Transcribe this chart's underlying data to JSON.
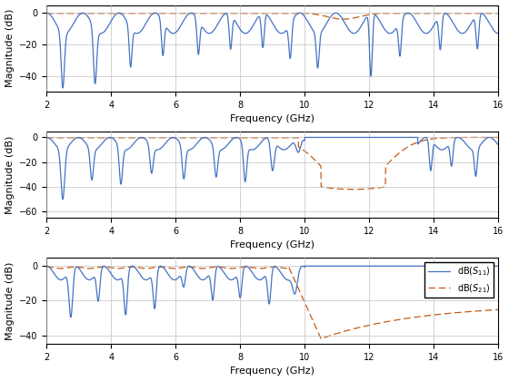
{
  "freq_range": [
    2,
    16
  ],
  "xlabel": "Frequency (GHz)",
  "ylabel": "Magnitude (dB)",
  "s11_color": "#4472C4",
  "s21_color": "#C55A11",
  "axes": [
    {
      "ylim": [
        -50,
        5
      ],
      "yticks": [
        0,
        -20,
        -40
      ]
    },
    {
      "ylim": [
        -65,
        5
      ],
      "yticks": [
        0,
        -20,
        -40,
        -60
      ]
    },
    {
      "ylim": [
        -45,
        5
      ],
      "yticks": [
        0,
        -20,
        -40
      ]
    }
  ]
}
